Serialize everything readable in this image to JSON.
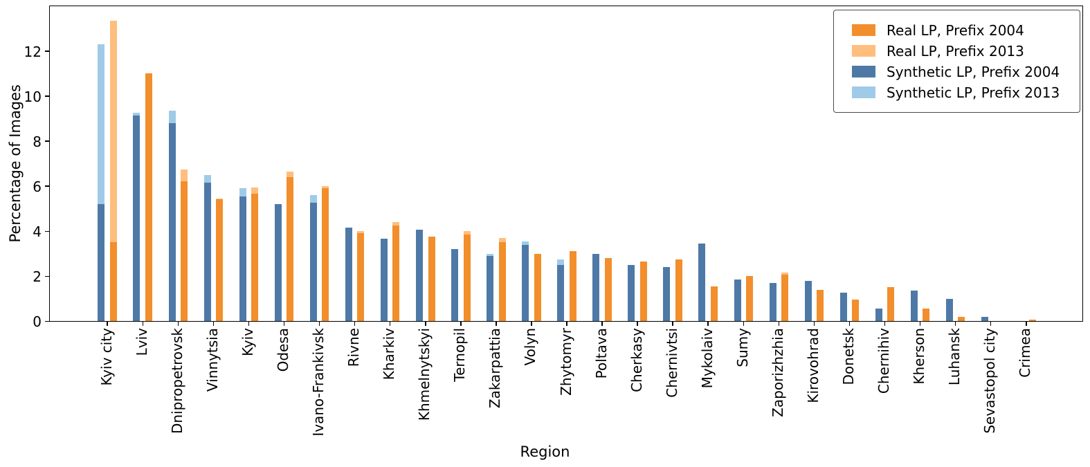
{
  "chart_data": {
    "type": "bar",
    "title": "",
    "xlabel": "Region",
    "ylabel": "Percentage of Images",
    "ylim": [
      0,
      14.06
    ],
    "yticks": [
      0,
      2,
      4,
      6,
      8,
      10,
      12
    ],
    "grid": false,
    "legend_position": "upper right",
    "categories": [
      "Kyiv city",
      "Lviv",
      "Dnipropetrovsk",
      "Vinnytsia",
      "Kyiv",
      "Odesa",
      "Ivano-Frankivsk",
      "Rivne",
      "Kharkiv",
      "Khmelnytskyi",
      "Ternopil",
      "Zakarpattia",
      "Volyn",
      "Zhytomyr",
      "Poltava",
      "Cherkasy",
      "Chernivtsi",
      "Mykolaiv",
      "Sumy",
      "Zaporizhzhia",
      "Kirovohrad",
      "Donetsk",
      "Chernihiv",
      "Kherson",
      "Luhansk",
      "Sevastopol city",
      "Crimea"
    ],
    "series": [
      {
        "name": "Real LP, Prefix 2004",
        "color": "#F28E2B",
        "slot": "right",
        "layer": "front",
        "values": [
          3.5,
          11.0,
          6.2,
          5.4,
          5.65,
          6.4,
          5.9,
          3.9,
          4.25,
          3.75,
          3.85,
          3.5,
          3.0,
          3.1,
          2.8,
          2.65,
          2.75,
          1.55,
          2.0,
          2.05,
          1.4,
          0.95,
          1.5,
          0.55,
          0.2,
          0.0,
          0.05
        ]
      },
      {
        "name": "Real LP, Prefix 2013",
        "color": "#FFBE7D",
        "slot": "right",
        "layer": "back",
        "values": [
          13.35,
          10.9,
          6.75,
          5.45,
          5.95,
          6.65,
          6.0,
          4.0,
          4.4,
          3.7,
          4.0,
          3.7,
          2.95,
          3.05,
          2.75,
          2.6,
          2.7,
          1.5,
          1.95,
          2.15,
          1.35,
          0.9,
          1.45,
          0.5,
          0.15,
          0.0,
          0.04
        ]
      },
      {
        "name": "Synthetic LP, Prefix 2004",
        "color": "#4E79A7",
        "slot": "left",
        "layer": "front",
        "values": [
          5.2,
          9.15,
          8.8,
          6.15,
          5.55,
          5.2,
          5.25,
          4.15,
          3.65,
          4.05,
          3.2,
          2.9,
          3.4,
          2.5,
          3.0,
          2.5,
          2.4,
          3.45,
          1.85,
          1.7,
          1.8,
          1.25,
          0.55,
          1.35,
          1.0,
          0.2,
          0.0
        ]
      },
      {
        "name": "Synthetic LP, Prefix 2013",
        "color": "#A0CBE8",
        "slot": "left",
        "layer": "back",
        "values": [
          12.3,
          9.25,
          9.35,
          6.5,
          5.9,
          5.1,
          5.6,
          4.1,
          3.6,
          4.0,
          3.15,
          3.0,
          3.55,
          2.75,
          2.95,
          2.45,
          2.35,
          3.4,
          1.8,
          1.65,
          1.75,
          1.2,
          0.5,
          1.3,
          0.95,
          0.18,
          0.0
        ]
      }
    ]
  }
}
